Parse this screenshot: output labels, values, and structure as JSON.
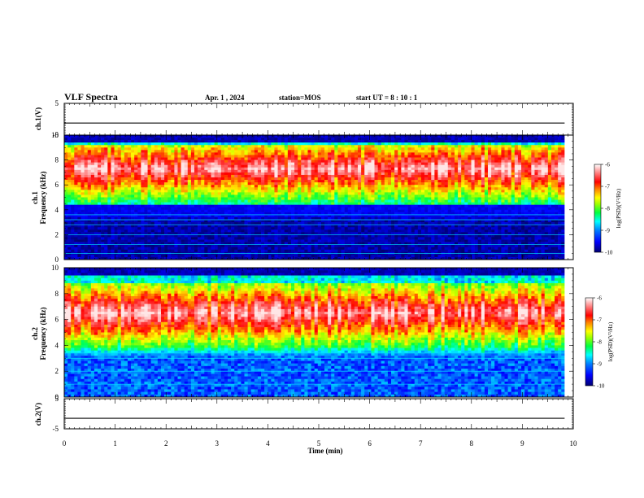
{
  "header": {
    "title": "VLF Spectra",
    "date": "Apr. 1 , 2024",
    "station": "station=MOS",
    "start_ut": "start UT =  8 : 10 : 1"
  },
  "chart_data": {
    "type": "heatmap",
    "x_axis": {
      "label": "Time (min)",
      "range": [
        0,
        10
      ],
      "ticks": [
        "0",
        "1",
        "2",
        "3",
        "4",
        "5",
        "6",
        "7",
        "8",
        "9",
        "10"
      ],
      "data_end": 9.83
    },
    "panels": [
      {
        "id": "ch1_waveform",
        "type": "line",
        "ylabel": "ch.1(V)",
        "ylim": [
          -5,
          5
        ],
        "yticks": [
          "5",
          "-5"
        ],
        "level": -1.2
      },
      {
        "id": "ch1_spectrogram",
        "type": "heatmap",
        "ylabel_line1": "ch.1",
        "ylabel_line2": "Frequency (kHz)",
        "ylim": [
          0,
          10
        ],
        "yticks": [
          "0",
          "2",
          "4",
          "6",
          "8",
          "10"
        ],
        "dominant_band_khz": [
          4.5,
          9.2
        ],
        "peak_khz": 7.3,
        "weak_lines_khz": [
          0.5,
          1.2,
          2.0,
          2.8,
          3.2,
          3.6
        ],
        "colorbar": {
          "label": "log(PSD)(V²/Hz)",
          "range": [
            -10,
            -6
          ],
          "ticks": [
            "-6",
            "-7",
            "-8",
            "-9",
            "-10"
          ]
        }
      },
      {
        "id": "ch2_spectrogram",
        "type": "heatmap",
        "ylabel_line1": "ch.2",
        "ylabel_line2": "Frequency (kHz)",
        "ylim": [
          0,
          10
        ],
        "yticks": [
          "0",
          "2",
          "4",
          "6",
          "8",
          "10"
        ],
        "dominant_band_khz": [
          4.0,
          8.8
        ],
        "peak_khz": 6.5,
        "weak_lines_khz": [
          1.0,
          2.0,
          3.0,
          3.4
        ],
        "colorbar": {
          "label": "log(PSD)(V²/Hz)",
          "range": [
            -10,
            -6
          ],
          "ticks": [
            "-6",
            "-7",
            "-8",
            "-9",
            "-10"
          ]
        }
      },
      {
        "id": "ch2_waveform",
        "type": "line",
        "ylabel": "ch.2(V)",
        "ylim": [
          -5,
          5
        ],
        "yticks": [
          "5",
          "-5"
        ],
        "level": -1.5
      }
    ],
    "colormap": [
      "#000070",
      "#0000ff",
      "#00a0ff",
      "#00ffff",
      "#00ff60",
      "#a0ff00",
      "#ffff00",
      "#ff8000",
      "#ff0000",
      "#ffffff"
    ]
  }
}
